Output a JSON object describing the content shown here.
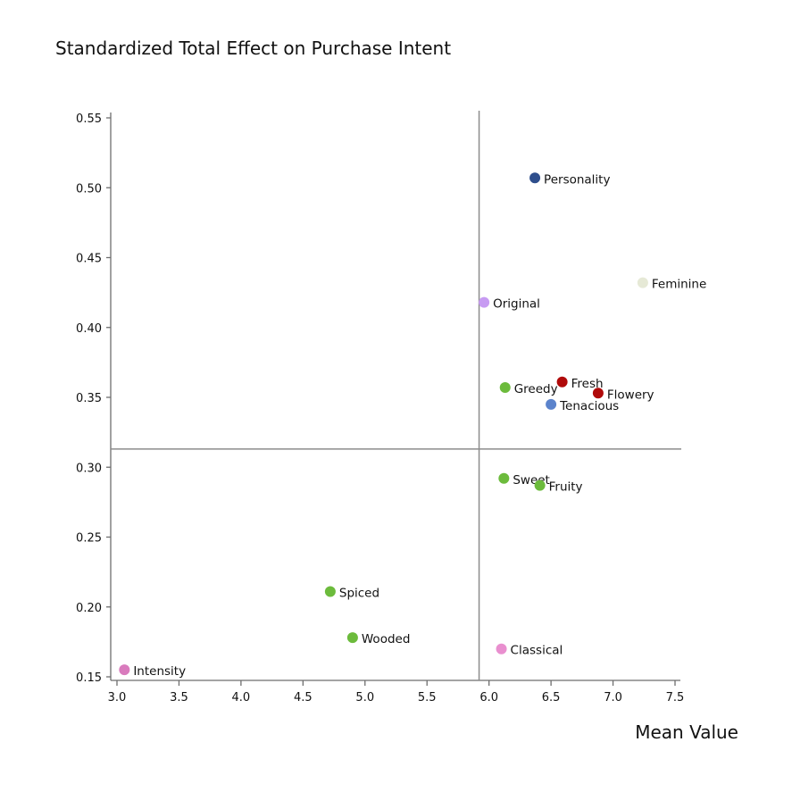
{
  "chart_data": {
    "type": "scatter",
    "title": "Standardized Total Effect on Purchase Intent",
    "xlabel": "Mean Value",
    "ylabel": "",
    "xlim": [
      3.0,
      7.5
    ],
    "ylim": [
      0.15,
      0.55
    ],
    "x_ticks": [
      "3.0",
      "3.5",
      "4.0",
      "4.5",
      "5.0",
      "5.5",
      "6.0",
      "6.5",
      "7.0",
      "7.5"
    ],
    "y_ticks": [
      "0.15",
      "0.20",
      "0.25",
      "0.30",
      "0.35",
      "0.40",
      "0.45",
      "0.50",
      "0.55"
    ],
    "grid": false,
    "reference_lines": {
      "x": 5.92,
      "y": 0.313
    },
    "points": [
      {
        "label": "Personality",
        "x": 6.37,
        "y": 0.507,
        "color": "#2e4e8c"
      },
      {
        "label": "Feminine",
        "x": 7.24,
        "y": 0.432,
        "color": "#e6e9d6"
      },
      {
        "label": "Original",
        "x": 5.96,
        "y": 0.418,
        "color": "#c79bf2"
      },
      {
        "label": "Fresh",
        "x": 6.59,
        "y": 0.361,
        "color": "#b00a0a"
      },
      {
        "label": "Flowery",
        "x": 6.88,
        "y": 0.353,
        "color": "#b00a0a"
      },
      {
        "label": "Greedy",
        "x": 6.13,
        "y": 0.357,
        "color": "#6cbb3c"
      },
      {
        "label": "Tenacious",
        "x": 6.5,
        "y": 0.345,
        "color": "#5b83cc"
      },
      {
        "label": "Sweet",
        "x": 6.12,
        "y": 0.292,
        "color": "#6cbb3c"
      },
      {
        "label": "Fruity",
        "x": 6.41,
        "y": 0.287,
        "color": "#6cbb3c"
      },
      {
        "label": "Spiced",
        "x": 4.72,
        "y": 0.211,
        "color": "#6cbb3c"
      },
      {
        "label": "Wooded",
        "x": 4.9,
        "y": 0.178,
        "color": "#6cbb3c"
      },
      {
        "label": "Classical",
        "x": 6.1,
        "y": 0.17,
        "color": "#e98fcf"
      },
      {
        "label": "Intensity",
        "x": 3.06,
        "y": 0.155,
        "color": "#d97bbd"
      }
    ]
  }
}
